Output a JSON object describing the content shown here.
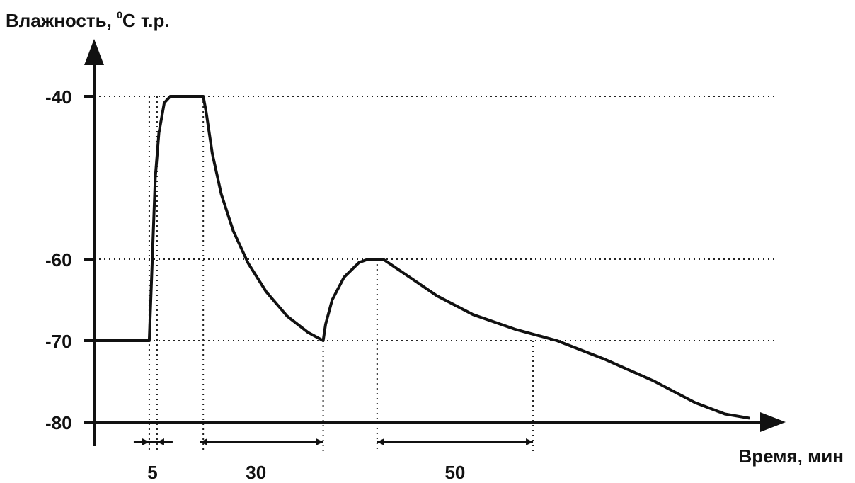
{
  "chart_data": {
    "type": "line",
    "title": "",
    "ylabel_main": "Влажность, ",
    "ylabel_sup": "0",
    "ylabel_rest": "C т.р.",
    "xlabel": "Время, мин",
    "yticks": [
      {
        "value": -40,
        "label": "-40"
      },
      {
        "value": -60,
        "label": "-60"
      },
      {
        "value": -70,
        "label": "-70"
      },
      {
        "value": -80,
        "label": "-80"
      }
    ],
    "x_unit": "мин",
    "xlim": [
      -9.2,
      100
    ],
    "ylim": [
      -80,
      -40
    ],
    "grid": "dotted at y ticks",
    "series": [
      {
        "values_note": "",
        "points": [
          [
            -9.2,
            -70
          ],
          [
            0,
            -70
          ],
          [
            0.5,
            -60
          ],
          [
            1,
            -50
          ],
          [
            1.6,
            -44.5
          ],
          [
            2.5,
            -40.8
          ],
          [
            3.5,
            -40
          ],
          [
            9,
            -40
          ],
          [
            9.5,
            -42
          ],
          [
            10.5,
            -47
          ],
          [
            12,
            -52
          ],
          [
            14,
            -56.5
          ],
          [
            16.5,
            -60.5
          ],
          [
            19.5,
            -64
          ],
          [
            23,
            -67
          ],
          [
            26.5,
            -69
          ],
          [
            29,
            -70
          ],
          [
            29.4,
            -68
          ],
          [
            30.5,
            -65
          ],
          [
            32.5,
            -62.2
          ],
          [
            35,
            -60.4
          ],
          [
            36.5,
            -60
          ],
          [
            39,
            -60
          ],
          [
            43,
            -62
          ],
          [
            48,
            -64.5
          ],
          [
            54,
            -66.8
          ],
          [
            61,
            -68.6
          ],
          [
            68,
            -70
          ],
          [
            76,
            -72.3
          ],
          [
            84,
            -74.9
          ],
          [
            91,
            -77.6
          ],
          [
            96,
            -79
          ],
          [
            100,
            -79.5
          ]
        ]
      }
    ],
    "intervals": [
      {
        "from": -1.5,
        "to": 5,
        "label": "5",
        "outer_arrows": true
      },
      {
        "from": 8.5,
        "to": 29,
        "label": "30",
        "outer_arrows": false
      },
      {
        "from": 38,
        "to": 64,
        "label": "50",
        "outer_arrows": false
      }
    ]
  }
}
